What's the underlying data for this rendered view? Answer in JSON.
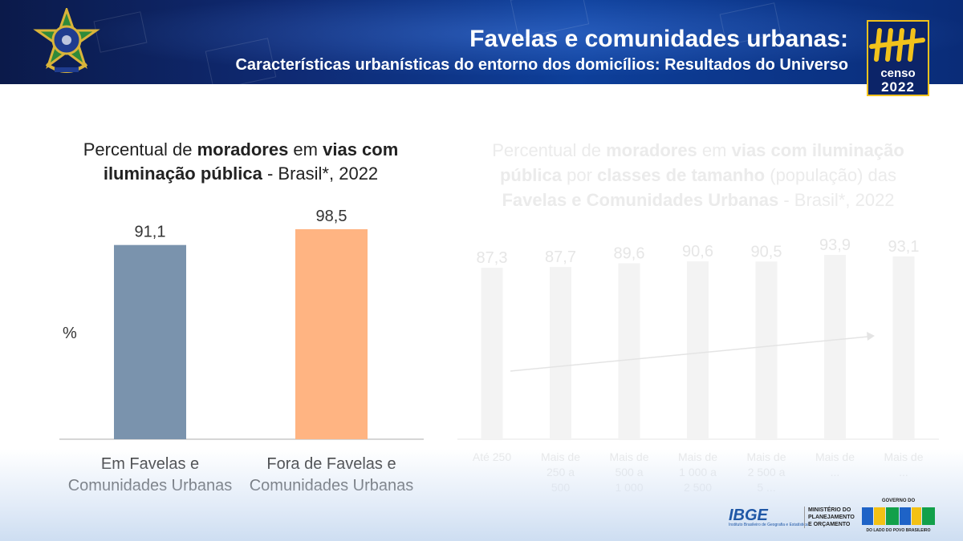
{
  "header": {
    "title": "Favelas e comunidades urbanas:",
    "subtitle": "Características urbanísticas do entorno dos domicílios: Resultados do Universo"
  },
  "logos": {
    "censo_label": "censo",
    "censo_year": "2022",
    "ibge": "IBGE",
    "ibge_sub": "Instituto Brasileiro de Geografia e Estatística",
    "ministerio": [
      "MINISTÉRIO DO",
      "PLANEJAMENTO",
      "E ORÇAMENTO"
    ],
    "gov_top": "GOVERNO DO",
    "gov_bottom": "DO LADO DO POVO BRASILEIRO"
  },
  "chart_data": [
    {
      "type": "bar",
      "title_parts": [
        {
          "text": "Percentual de ",
          "bold": false
        },
        {
          "text": "moradores",
          "bold": true
        },
        {
          "text": " em ",
          "bold": false
        },
        {
          "text": "vias com iluminação pública",
          "bold": true
        },
        {
          "text": " - Brasil*, 2022",
          "bold": false
        }
      ],
      "ylabel": "%",
      "categories": [
        "Em Favelas e Comunidades Urbanas",
        "Fora de Favelas e Comunidades Urbanas"
      ],
      "category_lines": [
        [
          "Em Favelas e",
          "Comunidades Urbanas"
        ],
        [
          "Fora de Favelas e",
          "Comunidades Urbanas"
        ]
      ],
      "values": [
        91.1,
        98.5
      ],
      "value_labels": [
        "91,1",
        "98,5"
      ],
      "colors": [
        "#7a93ad",
        "#ffb482"
      ],
      "ylim": [
        0,
        100
      ],
      "grid": false
    },
    {
      "type": "bar",
      "faded": true,
      "title_parts": [
        {
          "text": "Percentual de ",
          "bold": false
        },
        {
          "text": "moradores",
          "bold": true
        },
        {
          "text": " em ",
          "bold": false
        },
        {
          "text": "vias com iluminação pública",
          "bold": true
        },
        {
          "text": " por ",
          "bold": false
        },
        {
          "text": "classes de tamanho",
          "bold": true
        },
        {
          "text": " (população) das ",
          "bold": false
        },
        {
          "text": "Favelas e Comunidades Urbanas",
          "bold": true
        },
        {
          "text": " - Brasil*, 2022",
          "bold": false
        }
      ],
      "category_lines": [
        [
          "Até 250"
        ],
        [
          "Mais de",
          "250 a",
          "500"
        ],
        [
          "Mais de",
          "500 a",
          "1 000"
        ],
        [
          "Mais de",
          "1 000 a",
          "2 500"
        ],
        [
          "Mais de",
          "2 500 a",
          "5 ..."
        ],
        [
          "Mais de",
          "..."
        ],
        [
          "Mais de",
          "..."
        ]
      ],
      "values": [
        87.3,
        87.7,
        89.6,
        90.6,
        90.5,
        93.9,
        93.1
      ],
      "value_labels": [
        "87,3",
        "87,7",
        "89,6",
        "90,6",
        "90,5",
        "93,9",
        "93,1"
      ],
      "trend_arrow": true,
      "ylim": [
        0,
        100
      ]
    }
  ]
}
